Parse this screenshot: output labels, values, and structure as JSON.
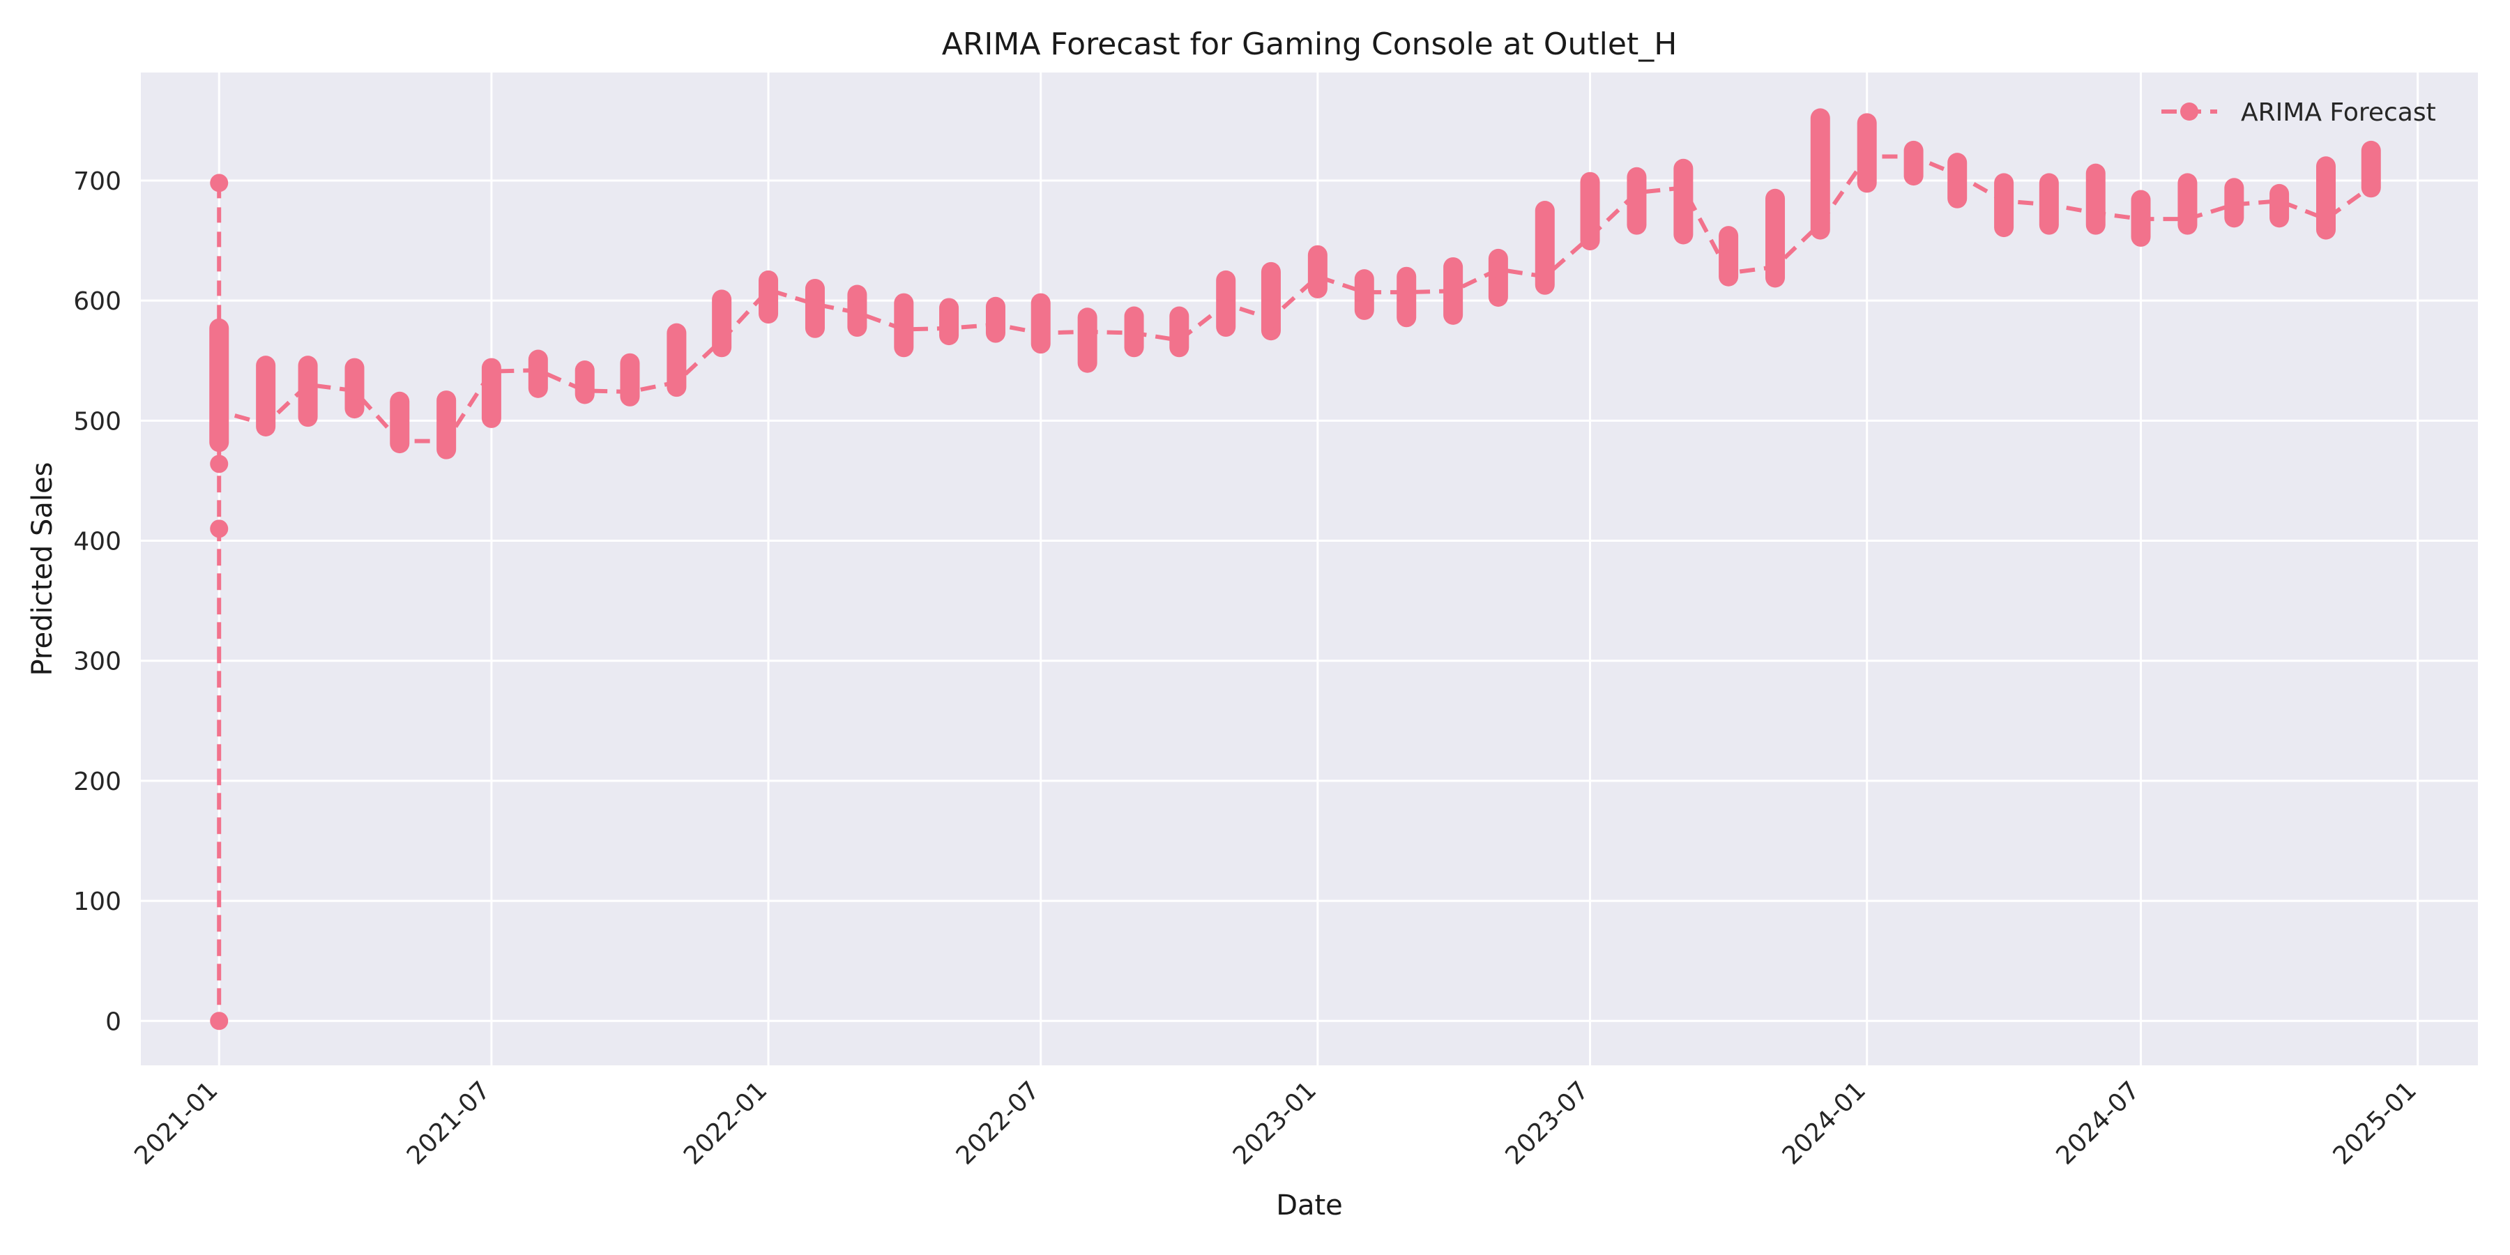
{
  "chart_data": {
    "type": "line",
    "title": "ARIMA Forecast for Gaming Console at Outlet_H",
    "xlabel": "Date",
    "ylabel": "Predicted Sales",
    "xlim": [
      "2020-11-10",
      "2025-02-10"
    ],
    "ylim": [
      -37,
      790
    ],
    "x_ticks": [
      "2021-01",
      "2021-07",
      "2022-01",
      "2022-07",
      "2023-01",
      "2023-07",
      "2024-01",
      "2024-07",
      "2025-01"
    ],
    "y_ticks": [
      0,
      100,
      200,
      300,
      400,
      500,
      600,
      700
    ],
    "grid": true,
    "legend_position": "top-right",
    "colors": {
      "series": "#f2728c",
      "plot_background": "#eaeaf2",
      "grid": "#ffffff"
    },
    "series": [
      {
        "name": "ARIMA Forecast",
        "line_style": "dashed",
        "marker": "circle",
        "x": [
          "2021-01-01",
          "2021-01-01",
          "2021-01-01",
          "2021-01-01",
          "2021-01-01",
          "2021-02-01",
          "2021-03-01",
          "2021-04-01",
          "2021-05-01",
          "2021-06-01",
          "2021-07-01",
          "2021-08-01",
          "2021-09-01",
          "2021-10-01",
          "2021-11-01",
          "2021-12-01",
          "2022-01-01",
          "2022-02-01",
          "2022-03-01",
          "2022-04-01",
          "2022-05-01",
          "2022-06-01",
          "2022-07-01",
          "2022-08-01",
          "2022-09-01",
          "2022-10-01",
          "2022-11-01",
          "2022-12-01",
          "2023-01-01",
          "2023-02-01",
          "2023-03-01",
          "2023-04-01",
          "2023-05-01",
          "2023-06-01",
          "2023-07-01",
          "2023-08-01",
          "2023-09-01",
          "2023-10-01",
          "2023-11-01",
          "2023-12-01",
          "2024-01-01",
          "2024-02-01",
          "2024-03-01",
          "2024-04-01",
          "2024-05-01",
          "2024-06-01",
          "2024-07-01",
          "2024-08-01",
          "2024-09-01",
          "2024-10-01",
          "2024-11-01",
          "2024-12-01"
        ],
        "y": [
          698,
          0,
          410,
          464,
          508,
          497,
          530,
          525,
          483,
          483,
          541,
          542,
          525,
          524,
          532,
          567,
          609,
          597,
          590,
          576,
          577,
          580,
          573,
          574,
          573,
          567,
          597,
          585,
          620,
          607,
          607,
          608,
          626,
          620,
          653,
          690,
          694,
          623,
          628,
          664,
          720,
          720,
          705,
          683,
          680,
          673,
          668,
          668,
          680,
          683,
          668,
          695
        ],
        "spread": [
          [
            0,
            0
          ],
          [
            0,
            0
          ],
          [
            0,
            0
          ],
          [
            0,
            0
          ],
          [
            482,
            577
          ],
          [
            495,
            546
          ],
          [
            503,
            546
          ],
          [
            510,
            544
          ],
          [
            481,
            516
          ],
          [
            476,
            517
          ],
          [
            502,
            544
          ],
          [
            527,
            551
          ],
          [
            522,
            542
          ],
          [
            520,
            548
          ],
          [
            528,
            573
          ],
          [
            561,
            601
          ],
          [
            589,
            617
          ],
          [
            577,
            610
          ],
          [
            578,
            605
          ],
          [
            561,
            598
          ],
          [
            571,
            594
          ],
          [
            573,
            595
          ],
          [
            564,
            598
          ],
          [
            548,
            586
          ],
          [
            561,
            587
          ],
          [
            561,
            587
          ],
          [
            578,
            617
          ],
          [
            575,
            624
          ],
          [
            610,
            638
          ],
          [
            592,
            618
          ],
          [
            586,
            620
          ],
          [
            588,
            628
          ],
          [
            603,
            635
          ],
          [
            613,
            675
          ],
          [
            650,
            699
          ],
          [
            663,
            703
          ],
          [
            655,
            710
          ],
          [
            620,
            654
          ],
          [
            619,
            685
          ],
          [
            659,
            752
          ],
          [
            698,
            748
          ],
          [
            704,
            725
          ],
          [
            685,
            715
          ],
          [
            661,
            698
          ],
          [
            663,
            698
          ],
          [
            663,
            706
          ],
          [
            653,
            684
          ],
          [
            663,
            698
          ],
          [
            669,
            694
          ],
          [
            669,
            689
          ],
          [
            659,
            712
          ],
          [
            694,
            725
          ]
        ]
      }
    ],
    "legend": [
      {
        "label": "ARIMA Forecast"
      }
    ]
  }
}
